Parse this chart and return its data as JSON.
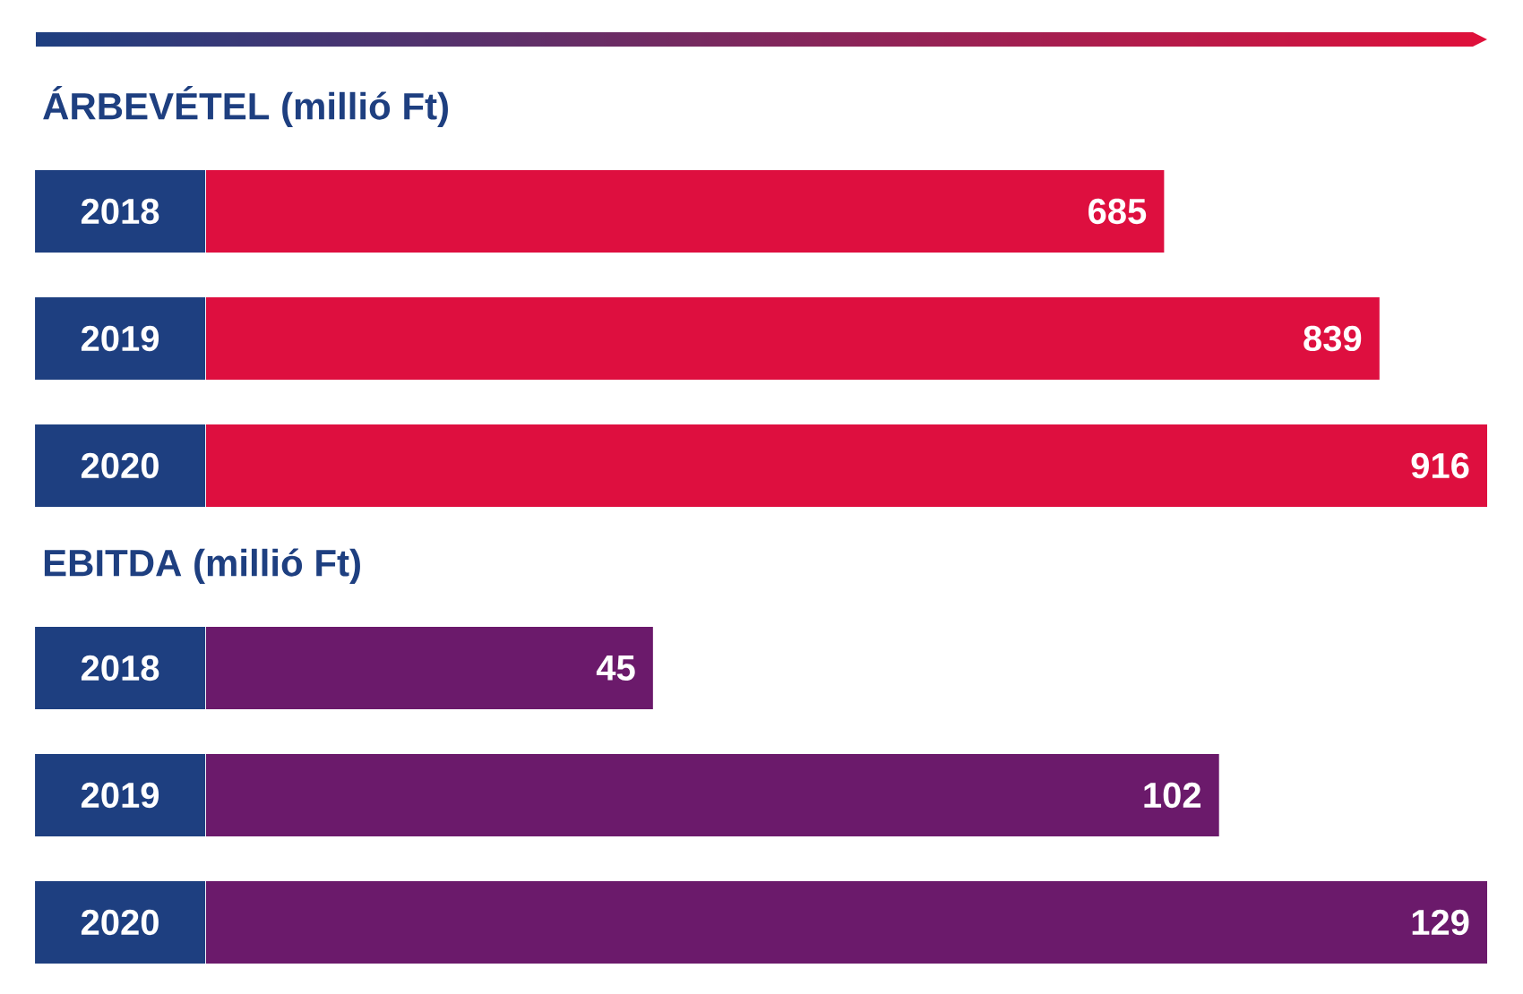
{
  "chart_data": [
    {
      "type": "bar",
      "orientation": "horizontal",
      "title": "ÁRBEVÉTEL (millió Ft)",
      "categories": [
        "2018",
        "2019",
        "2020"
      ],
      "values": [
        685,
        839,
        916
      ],
      "color": "#de0f3f",
      "data_labels": true
    },
    {
      "type": "bar",
      "orientation": "horizontal",
      "title": "EBITDA (millió Ft)",
      "categories": [
        "2018",
        "2019",
        "2020"
      ],
      "values": [
        45,
        102,
        129
      ],
      "color": "#6b1a6b",
      "data_labels": true
    }
  ]
}
